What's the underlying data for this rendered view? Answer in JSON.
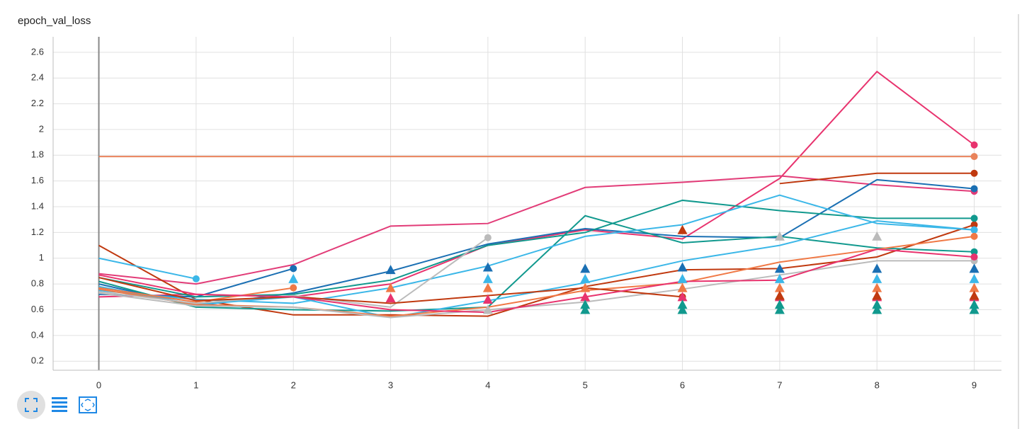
{
  "chart_data": {
    "type": "line",
    "title": "epoch_val_loss",
    "x": [
      0,
      1,
      2,
      3,
      4,
      5,
      6,
      7,
      8,
      9
    ],
    "xlim": [
      -0.47,
      9.28
    ],
    "ylim": [
      0.13,
      2.72
    ],
    "xticks": [
      0,
      1,
      2,
      3,
      4,
      5,
      6,
      7,
      8,
      9
    ],
    "yticks": [
      0.2,
      0.4,
      0.6,
      0.8,
      1,
      1.2,
      1.4,
      1.6,
      1.8,
      2,
      2.2,
      2.4,
      2.6
    ],
    "grid": true,
    "series": [
      {
        "color": "#e8336e",
        "marker": "circle",
        "values": [
          0.7,
          0.72,
          0.7,
          0.8,
          1.1,
          1.22,
          1.15,
          1.62,
          2.45,
          1.88
        ]
      },
      {
        "color": "#e9835b",
        "marker": "circle",
        "values": [
          1.79,
          1.79,
          1.79,
          1.79,
          1.79,
          1.79,
          1.79,
          1.79,
          1.79,
          1.79
        ]
      },
      {
        "color": "#e23c78",
        "marker": "circle",
        "values": [
          0.88,
          0.8,
          0.95,
          1.25,
          1.27,
          1.55,
          1.59,
          1.64,
          1.57,
          1.52
        ]
      },
      {
        "color": "#c0390f",
        "marker": "circle",
        "values": [
          1.1,
          0.68,
          0.56,
          0.56,
          0.55,
          0.78,
          0.91,
          0.92,
          1.01,
          1.26
        ]
      },
      {
        "color": "#c0390f",
        "marker": "circle",
        "values": [
          null,
          null,
          null,
          null,
          null,
          null,
          null,
          1.58,
          1.66,
          1.66
        ]
      },
      {
        "color": "#1a6fb3",
        "marker": "circle",
        "values": [
          0.72,
          0.7,
          0.92,
          null,
          null,
          null,
          null,
          null,
          null,
          null
        ]
      },
      {
        "color": "#1a6fb3",
        "marker": "circle",
        "values": [
          0.8,
          0.63,
          0.73,
          0.9,
          1.11,
          1.23,
          1.17,
          1.16,
          1.61,
          1.54
        ]
      },
      {
        "color": "#11998e",
        "marker": "circle",
        "values": [
          0.82,
          0.62,
          0.6,
          0.59,
          0.62,
          1.33,
          1.12,
          1.17,
          1.08,
          1.05
        ]
      },
      {
        "color": "#11998e",
        "marker": "circle",
        "values": [
          0.85,
          0.7,
          0.72,
          0.83,
          1.1,
          1.2,
          1.45,
          1.37,
          1.31,
          1.31
        ]
      },
      {
        "color": "#3bb7e8",
        "marker": "circle",
        "values": [
          1.0,
          0.84,
          null,
          null,
          null,
          null,
          null,
          null,
          null,
          null
        ]
      },
      {
        "color": "#3bb7e8",
        "marker": "circle",
        "values": [
          0.75,
          0.68,
          0.65,
          0.77,
          0.94,
          1.17,
          1.26,
          1.49,
          1.27,
          1.22
        ]
      },
      {
        "color": "#3bb7e8",
        "marker": "circle",
        "values": [
          0.78,
          0.64,
          0.7,
          0.54,
          0.67,
          0.81,
          0.98,
          1.1,
          1.29,
          1.22
        ]
      },
      {
        "color": "#f07946",
        "marker": "circle",
        "values": [
          0.77,
          0.66,
          0.77,
          null,
          null,
          null,
          null,
          null,
          null,
          null
        ]
      },
      {
        "color": "#f07946",
        "marker": "circle",
        "values": [
          0.76,
          0.64,
          0.62,
          0.55,
          0.62,
          0.75,
          0.81,
          0.97,
          1.07,
          1.17
        ]
      },
      {
        "color": "#bbbbbb",
        "marker": "circle",
        "values": [
          0.74,
          0.65,
          0.71,
          0.62,
          1.16,
          null,
          null,
          null,
          null,
          null
        ]
      },
      {
        "color": "#bbbbbb",
        "marker": "circle",
        "values": [
          0.73,
          0.63,
          0.62,
          0.54,
          0.6,
          0.66,
          0.76,
          0.87,
          0.98,
          0.98
        ]
      },
      {
        "color": "#c0390f",
        "marker": "circle",
        "values": [
          0.85,
          0.67,
          0.7,
          0.65,
          0.71,
          0.77,
          0.7,
          null,
          null,
          null
        ]
      },
      {
        "color": "#e8336e",
        "marker": "circle",
        "values": [
          0.87,
          0.72,
          0.7,
          0.6,
          0.58,
          0.7,
          0.82,
          0.83,
          1.07,
          1.01
        ]
      },
      {
        "color": "#1a6fb3",
        "marker": "triangle",
        "values": [
          null,
          null,
          null,
          0.91,
          0.93,
          0.92,
          0.93,
          0.92,
          0.92,
          0.92
        ]
      },
      {
        "color": "#3bb7e8",
        "marker": "triangle",
        "values": [
          null,
          null,
          0.84,
          null,
          0.84,
          0.84,
          0.84,
          0.84,
          0.84,
          0.84
        ]
      },
      {
        "color": "#f07946",
        "marker": "triangle",
        "values": [
          null,
          null,
          null,
          0.77,
          0.77,
          0.77,
          0.77,
          0.77,
          0.77,
          0.77
        ]
      },
      {
        "color": "#e8336e",
        "marker": "triangle",
        "values": [
          null,
          null,
          null,
          0.69,
          0.68,
          0.7,
          0.7,
          0.7,
          0.7,
          0.7
        ]
      },
      {
        "color": "#c0390f",
        "marker": "triangle",
        "values": [
          null,
          null,
          null,
          null,
          null,
          null,
          1.22,
          0.71,
          0.71,
          0.71
        ]
      },
      {
        "color": "#11998e",
        "marker": "triangle",
        "values": [
          null,
          null,
          null,
          null,
          null,
          0.64,
          0.64,
          0.64,
          0.64,
          0.64
        ]
      },
      {
        "color": "#11998e",
        "marker": "triangle",
        "values": [
          null,
          null,
          null,
          null,
          null,
          0.6,
          0.6,
          0.6,
          0.6,
          0.6
        ]
      },
      {
        "color": "#bbbbbb",
        "marker": "triangle",
        "values": [
          null,
          null,
          null,
          null,
          0.6,
          null,
          null,
          1.17,
          1.17,
          null
        ]
      }
    ]
  }
}
